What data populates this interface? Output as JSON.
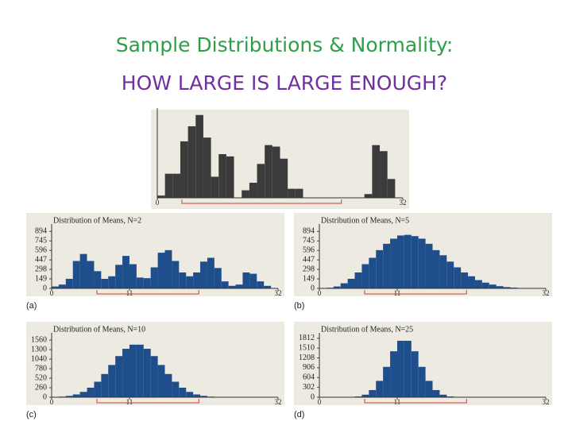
{
  "slide": {
    "title": "Sample Distributions & Normality:",
    "subtitle": "HOW LARGE IS LARGE ENOUGH?"
  },
  "chart_data": [
    {
      "type": "histogram",
      "color": "#3b3b3b",
      "bins": [
        0,
        1,
        2,
        3,
        4,
        5,
        6,
        7,
        8,
        9,
        10,
        11,
        12,
        13,
        14,
        15,
        16,
        17,
        18,
        19,
        20,
        21,
        22,
        23,
        24,
        25,
        26,
        27,
        28,
        29,
        30,
        31,
        32
      ],
      "values": [
        3,
        32,
        32,
        75,
        95,
        110,
        80,
        28,
        58,
        55,
        0,
        10,
        20,
        45,
        70,
        68,
        52,
        12,
        12,
        0,
        0,
        0,
        0,
        0,
        0,
        0,
        0,
        5,
        70,
        62,
        25,
        0
      ],
      "xlim": [
        0,
        32
      ],
      "xticks": [
        0,
        32
      ],
      "ylim": [
        0,
        115
      ]
    },
    {
      "type": "histogram",
      "title": "Distribution of Means, N=2",
      "panel_label": "(a)",
      "color": "#1f4e8c",
      "bins": [
        0,
        1,
        2,
        3,
        4,
        5,
        6,
        7,
        8,
        9,
        10,
        11,
        12,
        13,
        14,
        15,
        16,
        17,
        18,
        19,
        20,
        21,
        22,
        23,
        24,
        25,
        26,
        27,
        28,
        29,
        30,
        31,
        32
      ],
      "values": [
        30,
        60,
        150,
        430,
        540,
        430,
        270,
        150,
        190,
        370,
        510,
        380,
        170,
        160,
        330,
        560,
        600,
        430,
        250,
        190,
        250,
        420,
        480,
        320,
        110,
        40,
        60,
        250,
        230,
        110,
        40,
        0
      ],
      "xlim": [
        0,
        32
      ],
      "xticks": [
        0,
        11,
        32
      ],
      "ylim": [
        0,
        960
      ],
      "yticks": [
        0,
        149,
        298,
        447,
        596,
        745,
        894
      ]
    },
    {
      "type": "histogram",
      "title": "Distribution of Means, N=5",
      "panel_label": "(b)",
      "color": "#1f4e8c",
      "bins": [
        0,
        1,
        2,
        3,
        4,
        5,
        6,
        7,
        8,
        9,
        10,
        11,
        12,
        13,
        14,
        15,
        16,
        17,
        18,
        19,
        20,
        21,
        22,
        23,
        24,
        25,
        26,
        27,
        28,
        29,
        30,
        31,
        32
      ],
      "values": [
        5,
        10,
        30,
        80,
        150,
        250,
        380,
        480,
        600,
        700,
        780,
        830,
        840,
        820,
        780,
        700,
        600,
        520,
        420,
        330,
        250,
        190,
        130,
        90,
        60,
        35,
        20,
        12,
        6,
        3,
        1,
        0
      ],
      "xlim": [
        0,
        32
      ],
      "xticks": [
        0,
        11,
        32
      ],
      "ylim": [
        0,
        960
      ],
      "yticks": [
        0,
        149,
        298,
        447,
        596,
        745,
        894
      ]
    },
    {
      "type": "histogram",
      "title": "Distribution of Means, N=10",
      "panel_label": "(c)",
      "color": "#1f4e8c",
      "bins": [
        0,
        1,
        2,
        3,
        4,
        5,
        6,
        7,
        8,
        9,
        10,
        11,
        12,
        13,
        14,
        15,
        16,
        17,
        18,
        19,
        20,
        21,
        22,
        23,
        24,
        25,
        26,
        27,
        28,
        29,
        30,
        31,
        32
      ],
      "values": [
        7,
        16,
        37,
        76,
        146,
        260,
        423,
        634,
        880,
        1123,
        1322,
        1435,
        1435,
        1322,
        1123,
        880,
        634,
        423,
        260,
        146,
        76,
        37,
        16,
        7,
        3,
        1,
        0,
        0,
        0,
        0,
        0,
        0
      ],
      "xlim": [
        0,
        32
      ],
      "xticks": [
        0,
        11,
        32
      ],
      "ylim": [
        0,
        1670
      ],
      "yticks": [
        0,
        260,
        520,
        780,
        1040,
        1300,
        1560
      ]
    },
    {
      "type": "histogram",
      "title": "Distribution of Means, N=25",
      "panel_label": "(d)",
      "color": "#1f4e8c",
      "bins": [
        0,
        1,
        2,
        3,
        4,
        5,
        6,
        7,
        8,
        9,
        10,
        11,
        12,
        13,
        14,
        15,
        16,
        17,
        18,
        19,
        20,
        21,
        22,
        23,
        24,
        25,
        26,
        27,
        28,
        29,
        30,
        31,
        32
      ],
      "values": [
        0,
        0,
        1,
        1,
        5,
        23,
        78,
        220,
        502,
        933,
        1412,
        1735,
        1735,
        1412,
        933,
        502,
        220,
        78,
        23,
        5,
        1,
        1,
        0,
        0,
        0,
        0,
        0,
        0,
        0,
        0,
        0,
        0
      ],
      "xlim": [
        0,
        32
      ],
      "xticks": [
        0,
        11,
        32
      ],
      "ylim": [
        0,
        1880
      ],
      "yticks": [
        0,
        302,
        604,
        906,
        1208,
        1510,
        1812
      ]
    }
  ]
}
